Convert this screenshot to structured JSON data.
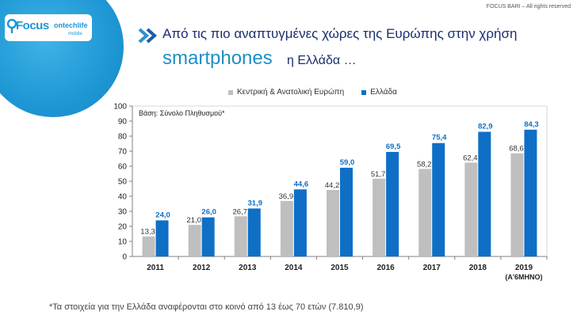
{
  "copyright": "FOCUS BARI – All rights reserved",
  "logo": {
    "focus": "Focus",
    "rest": "ontechlife",
    "sub": "mobile"
  },
  "headline": {
    "line1": "Από τις πιο αναπτυγμένες χώρες της Ευρώπης στην χρήση",
    "big": "smartphones",
    "small": "η Ελλάδα …"
  },
  "footnote": "*Τα στοιχεία για την Ελλάδα αναφέρονται στο κοινό από 13 έως 70 ετών (7.810,9)",
  "colors": {
    "gray": "#bfbfbf",
    "blue": "#0f6fc6",
    "axis": "#808080",
    "grid": "#d9d9d9"
  },
  "chart_data": {
    "type": "bar",
    "base_note": "Βάση: Σύνολο Πληθυσμού*",
    "categories": [
      "2011",
      "2012",
      "2013",
      "2014",
      "2015",
      "2016",
      "2017",
      "2018",
      "2019"
    ],
    "category_sublabels": [
      "",
      "",
      "",
      "",
      "",
      "",
      "",
      "",
      "(Α'6ΜΗΝΟ)"
    ],
    "series": [
      {
        "name": "Κεντρική & Ανατολική Ευρώπη",
        "color": "#bfbfbf",
        "values": [
          13.3,
          21.0,
          26.7,
          36.9,
          44.2,
          51.7,
          58.2,
          62.4,
          68.6
        ],
        "labels": [
          "13,3",
          "21,0",
          "26,7",
          "36,9",
          "44,2",
          "51,7",
          "58,2",
          "62,4",
          "68,6"
        ]
      },
      {
        "name": "Ελλάδα",
        "color": "#0f6fc6",
        "values": [
          24.0,
          26.0,
          31.9,
          44.6,
          59.0,
          69.5,
          75.4,
          82.9,
          84.3
        ],
        "labels": [
          "24,0",
          "26,0",
          "31,9",
          "44,6",
          "59,0",
          "69,5",
          "75,4",
          "82,9",
          "84,3"
        ]
      }
    ],
    "ylim": [
      0,
      100
    ],
    "yticks": [
      0,
      10,
      20,
      30,
      40,
      50,
      60,
      70,
      80,
      90,
      100
    ],
    "legend_position": "top-center",
    "grid": false
  }
}
